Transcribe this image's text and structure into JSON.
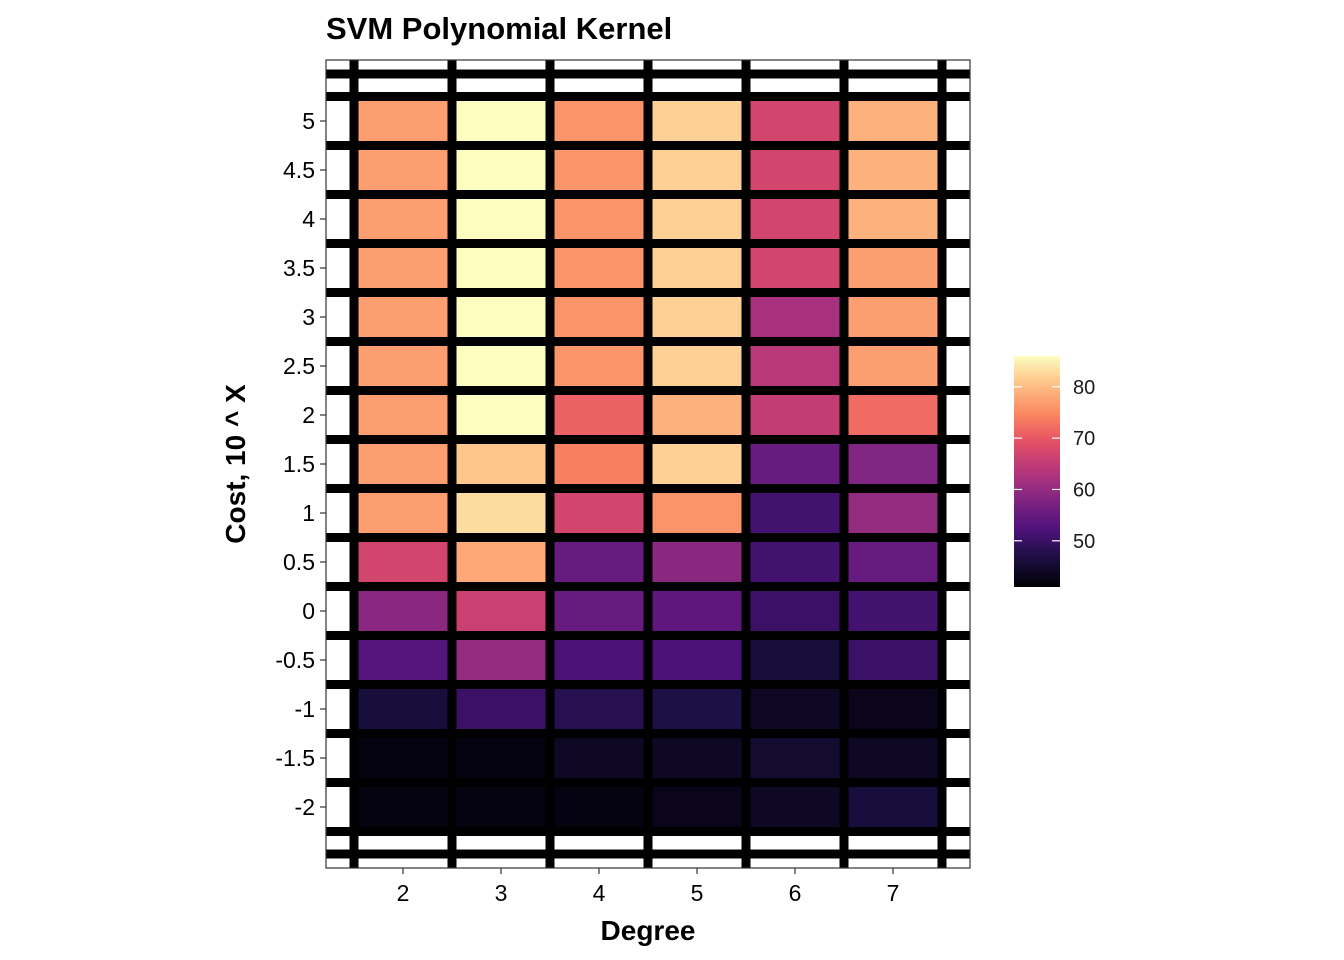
{
  "chart_data": {
    "type": "heatmap",
    "title": "SVM Polynomial Kernel",
    "xlabel": "Degree",
    "ylabel": "Cost, 10 ^ X",
    "x": [
      2,
      3,
      4,
      5,
      6,
      7
    ],
    "y": [
      -2,
      -1.5,
      -1,
      -0.5,
      0,
      0.5,
      1,
      1.5,
      2,
      2.5,
      3,
      3.5,
      4,
      4.5,
      5
    ],
    "x_tick_labels": [
      "2",
      "3",
      "4",
      "5",
      "6",
      "7"
    ],
    "y_tick_labels": [
      "-2",
      "-1.5",
      "-1",
      "-0.5",
      "0",
      "0.5",
      "1",
      "1.5",
      "2",
      "2.5",
      "3",
      "3.5",
      "4",
      "4.5",
      "5"
    ],
    "values": [
      [
        42,
        42,
        42,
        43,
        44,
        46
      ],
      [
        42,
        42,
        44,
        44,
        45,
        44
      ],
      [
        46,
        50,
        48,
        47,
        44,
        43
      ],
      [
        53,
        60,
        52,
        52,
        46,
        50
      ],
      [
        59,
        66,
        55,
        54,
        50,
        51
      ],
      [
        67,
        78,
        55,
        59,
        51,
        55
      ],
      [
        77,
        83,
        67,
        76,
        51,
        60
      ],
      [
        77,
        81,
        74,
        82,
        55,
        58
      ],
      [
        77,
        86,
        71,
        79,
        65,
        72
      ],
      [
        77,
        86,
        76,
        82,
        64,
        77
      ],
      [
        77,
        86,
        76,
        82,
        62,
        77
      ],
      [
        77,
        86,
        76,
        82,
        67,
        77
      ],
      [
        77,
        86,
        76,
        82,
        67,
        79
      ],
      [
        77,
        86,
        76,
        82,
        67,
        79
      ],
      [
        77,
        86,
        76,
        82,
        67,
        79
      ]
    ],
    "color_scale": "magma",
    "color_range": [
      41,
      86
    ],
    "legend": {
      "position": "right",
      "ticks": [
        50,
        60,
        70,
        80
      ],
      "tick_labels": [
        "50",
        "60",
        "70",
        "80"
      ]
    },
    "grid": true
  }
}
